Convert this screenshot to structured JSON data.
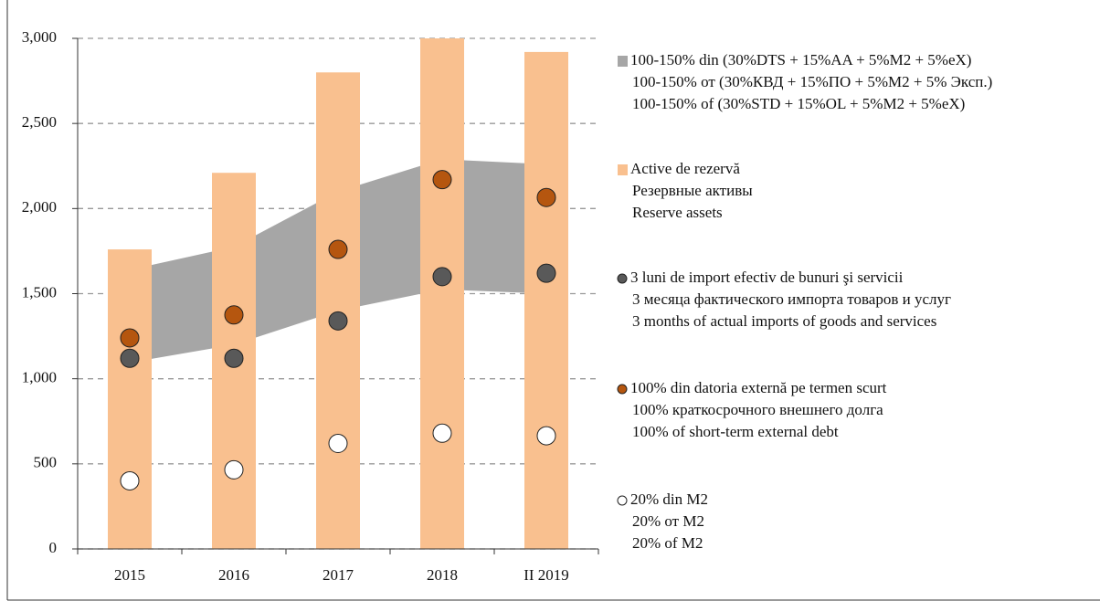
{
  "chart_data": {
    "type": "combo",
    "categories": [
      "2015",
      "2016",
      "2017",
      "2018",
      "II 2019"
    ],
    "ylim": [
      0,
      3000
    ],
    "yticks": [
      0,
      500,
      {
        "value": 1000,
        "label": "1,000"
      },
      {
        "value": 1500,
        "label": "1,500"
      },
      {
        "value": 2000,
        "label": "2,000"
      },
      {
        "value": 2500,
        "label": "2,500"
      },
      {
        "value": 3000,
        "label": "3,000"
      }
    ],
    "grid": true,
    "legend": "right",
    "series": [
      {
        "type": "area",
        "color": "#a6a6a6",
        "name": [
          "100-150% din (30%DTS + 15%AA + 5%M2 + 5%eX)",
          "100-150% от (30%КВД  + 15%ПО + 5%M2 + 5% Эксп.)",
          "100-150% of (30%STD + 15%OL + 5%M2 + 5%eX)"
        ],
        "lower": [
          1095,
          1200,
          1400,
          1525,
          1500
        ],
        "upper": [
          1640,
          1775,
          2100,
          2290,
          2260
        ]
      },
      {
        "type": "bar",
        "color": "#f9c08f",
        "name": [
          "Active de rezervă",
          "Резервные активы",
          "Reserve assets"
        ],
        "values": [
          1760,
          2210,
          2800,
          3000,
          2920
        ]
      },
      {
        "type": "dot",
        "color": "#595959",
        "name": [
          "3 luni de import efectiv de bunuri şi servicii",
          "3 месяца фактического импорта товаров и услуг",
          "3 months of actual imports of goods and services"
        ],
        "values": [
          1120,
          1120,
          1340,
          1600,
          1620
        ]
      },
      {
        "type": "dot",
        "color": "#b5560f",
        "name": [
          "100% din datoria externă pe termen scurt",
          "100% краткосрочного внешнего долга",
          "100% of short-term external debt"
        ],
        "values": [
          1240,
          1375,
          1760,
          2170,
          2065
        ]
      },
      {
        "type": "dot",
        "color": "#ffffff",
        "name": [
          "20% din M2",
          "20% от M2",
          "20% of M2"
        ],
        "values": [
          400,
          465,
          620,
          680,
          665
        ]
      }
    ]
  }
}
